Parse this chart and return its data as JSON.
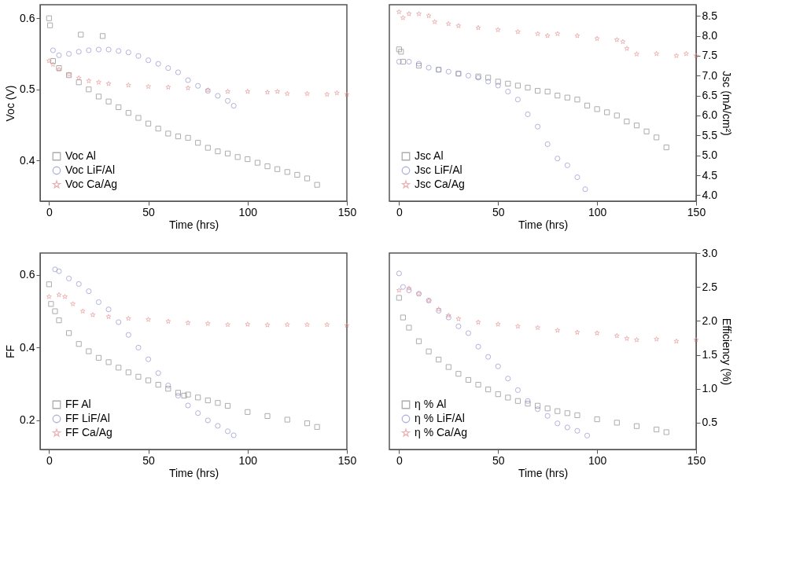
{
  "chart_data": [
    {
      "type": "scatter",
      "xlabel": "Time (hrs)",
      "ylabel": "Voc (V)",
      "xlim": [
        -4.5,
        150
      ],
      "xticks": [
        0,
        50,
        100,
        150
      ],
      "ylim": [
        0.343,
        0.619
      ],
      "yticks": [
        0.4,
        0.5,
        0.6
      ],
      "grid": false,
      "legend": "bottom left",
      "series": [
        {
          "name": "Voc Al",
          "color": "#808080",
          "marker": "square",
          "x": [
            0,
            0.5,
            2,
            5,
            10,
            15,
            16,
            20,
            25,
            27,
            30,
            35,
            40,
            45,
            50,
            55,
            60,
            65,
            70,
            75,
            80,
            85,
            90,
            95,
            100,
            105,
            110,
            115,
            120,
            125,
            130,
            135
          ],
          "values": [
            0.6,
            0.59,
            0.54,
            0.53,
            0.52,
            0.51,
            0.577,
            0.5,
            0.49,
            0.575,
            0.483,
            0.475,
            0.467,
            0.46,
            0.452,
            0.445,
            0.438,
            0.434,
            0.432,
            0.425,
            0.418,
            0.413,
            0.41,
            0.405,
            0.402,
            0.397,
            0.392,
            0.388,
            0.384,
            0.38,
            0.375,
            0.366
          ]
        },
        {
          "name": "Voc LiF/Al",
          "color": "#8888c8",
          "marker": "circle",
          "x": [
            2,
            5,
            10,
            15,
            20,
            25,
            30,
            35,
            40,
            45,
            50,
            55,
            60,
            65,
            70,
            75,
            80,
            85,
            90,
            93
          ],
          "values": [
            0.555,
            0.548,
            0.55,
            0.553,
            0.555,
            0.556,
            0.556,
            0.554,
            0.552,
            0.547,
            0.541,
            0.536,
            0.53,
            0.524,
            0.513,
            0.505,
            0.498,
            0.491,
            0.484,
            0.477
          ]
        },
        {
          "name": "Voc Ca/Ag",
          "color": "#e08c8c",
          "marker": "star",
          "x": [
            0,
            2,
            5,
            10,
            15,
            20,
            25,
            30,
            40,
            50,
            60,
            70,
            80,
            90,
            100,
            110,
            115,
            120,
            130,
            140,
            145,
            150
          ],
          "values": [
            0.54,
            0.535,
            0.528,
            0.521,
            0.516,
            0.512,
            0.51,
            0.508,
            0.506,
            0.504,
            0.503,
            0.502,
            0.499,
            0.497,
            0.497,
            0.496,
            0.497,
            0.494,
            0.494,
            0.493,
            0.495,
            0.493
          ]
        }
      ]
    },
    {
      "type": "scatter",
      "xlabel": "Time (hrs)",
      "y2label": "Jsc (mA/cm²)",
      "xlim": [
        -4.9,
        150
      ],
      "xticks": [
        0,
        50,
        100,
        150
      ],
      "y2lim": [
        3.85,
        8.78
      ],
      "y2ticks": [
        {
          "value": 4,
          "label": "4.0"
        },
        4.5,
        {
          "value": 5,
          "label": "5.0"
        },
        5.5,
        {
          "value": 6,
          "label": "6.0"
        },
        6.5,
        {
          "value": 7,
          "label": "7.0"
        },
        7.5,
        {
          "value": 8,
          "label": "8.0"
        },
        8.5
      ],
      "grid": false,
      "legend": "bottom left",
      "series": [
        {
          "name": "Jsc Al",
          "color": "#808080",
          "marker": "square",
          "axis": "y2",
          "x": [
            0,
            1,
            2,
            10,
            20,
            30,
            40,
            45,
            50,
            55,
            60,
            65,
            70,
            75,
            80,
            85,
            90,
            95,
            100,
            105,
            110,
            115,
            120,
            125,
            130,
            135
          ],
          "values": [
            7.66,
            7.6,
            7.35,
            7.25,
            7.15,
            7.05,
            6.98,
            6.95,
            6.85,
            6.8,
            6.75,
            6.7,
            6.62,
            6.6,
            6.5,
            6.45,
            6.4,
            6.25,
            6.16,
            6.08,
            6.0,
            5.85,
            5.75,
            5.6,
            5.45,
            5.2
          ]
        },
        {
          "name": "Jsc LiF/Al",
          "color": "#8888c8",
          "marker": "circle",
          "axis": "y2",
          "x": [
            0,
            5,
            10,
            15,
            20,
            25,
            30,
            35,
            40,
            45,
            50,
            55,
            60,
            65,
            70,
            75,
            80,
            85,
            90,
            94
          ],
          "values": [
            7.35,
            7.35,
            7.3,
            7.2,
            7.15,
            7.1,
            7.05,
            7.0,
            6.95,
            6.85,
            6.75,
            6.6,
            6.4,
            6.03,
            5.72,
            5.28,
            4.92,
            4.75,
            4.45,
            4.15
          ]
        },
        {
          "name": "Jsc Ca/Ag",
          "color": "#e08c8c",
          "marker": "star",
          "axis": "y2",
          "x": [
            0,
            2,
            5,
            10,
            15,
            18,
            25,
            30,
            40,
            50,
            60,
            70,
            75,
            80,
            90,
            100,
            110,
            113,
            115,
            120,
            130,
            140,
            145,
            150
          ],
          "values": [
            8.6,
            8.45,
            8.55,
            8.55,
            8.5,
            8.35,
            8.3,
            8.25,
            8.2,
            8.15,
            8.1,
            8.05,
            8.0,
            8.05,
            8.0,
            7.93,
            7.9,
            7.85,
            7.68,
            7.54,
            7.55,
            7.5,
            7.55,
            7.5
          ]
        }
      ]
    },
    {
      "type": "scatter",
      "xlabel": "Time (hrs)",
      "ylabel": "FF",
      "xlim": [
        -4.5,
        150
      ],
      "xticks": [
        0,
        50,
        100,
        150
      ],
      "ylim": [
        0.12,
        0.66
      ],
      "yticks": [
        0.2,
        0.4,
        0.6
      ],
      "grid": false,
      "legend": "bottom left",
      "series": [
        {
          "name": "FF Al",
          "color": "#808080",
          "marker": "square",
          "x": [
            0,
            1,
            3,
            5,
            10,
            15,
            20,
            25,
            30,
            35,
            40,
            45,
            50,
            55,
            60,
            65,
            68,
            70,
            75,
            80,
            85,
            90,
            100,
            110,
            120,
            130,
            135
          ],
          "values": [
            0.574,
            0.52,
            0.5,
            0.475,
            0.44,
            0.41,
            0.39,
            0.372,
            0.36,
            0.345,
            0.332,
            0.32,
            0.31,
            0.298,
            0.287,
            0.276,
            0.268,
            0.271,
            0.263,
            0.255,
            0.248,
            0.24,
            0.223,
            0.212,
            0.202,
            0.192,
            0.182
          ]
        },
        {
          "name": "FF LiF/Al",
          "color": "#8888c8",
          "marker": "circle",
          "x": [
            3,
            5,
            10,
            15,
            20,
            25,
            30,
            35,
            40,
            45,
            50,
            55,
            60,
            65,
            70,
            75,
            80,
            85,
            90,
            93
          ],
          "values": [
            0.615,
            0.61,
            0.59,
            0.575,
            0.555,
            0.525,
            0.505,
            0.47,
            0.435,
            0.4,
            0.368,
            0.33,
            0.296,
            0.268,
            0.241,
            0.22,
            0.2,
            0.185,
            0.17,
            0.159
          ]
        },
        {
          "name": "FF Ca/Ag",
          "color": "#e08c8c",
          "marker": "star",
          "x": [
            0,
            5,
            8,
            12,
            17,
            22,
            30,
            40,
            50,
            60,
            70,
            80,
            90,
            100,
            110,
            120,
            130,
            140,
            150
          ],
          "values": [
            0.54,
            0.545,
            0.54,
            0.52,
            0.5,
            0.49,
            0.485,
            0.48,
            0.477,
            0.472,
            0.468,
            0.466,
            0.463,
            0.464,
            0.462,
            0.463,
            0.463,
            0.463,
            0.461
          ]
        }
      ]
    },
    {
      "type": "scatter",
      "xlabel": "Time (hrs)",
      "y2label": "Efficiency (%)",
      "xlim": [
        -4.9,
        150
      ],
      "xticks": [
        0,
        50,
        100,
        150
      ],
      "y2lim": [
        0.105,
        3.0
      ],
      "y2ticks": [
        0.5,
        {
          "value": 1,
          "label": "1.0"
        },
        1.5,
        {
          "value": 2,
          "label": "2.0"
        },
        2.5,
        {
          "value": 3,
          "label": "3.0"
        }
      ],
      "grid": false,
      "legend": "bottom left",
      "series": [
        {
          "name": "η % Al",
          "color": "#808080",
          "marker": "square",
          "axis": "y2",
          "x": [
            0,
            2,
            5,
            10,
            15,
            20,
            25,
            30,
            35,
            40,
            45,
            50,
            55,
            60,
            65,
            70,
            75,
            80,
            85,
            90,
            100,
            110,
            120,
            130,
            135
          ],
          "values": [
            2.34,
            2.05,
            1.9,
            1.7,
            1.55,
            1.43,
            1.32,
            1.22,
            1.13,
            1.06,
            0.99,
            0.92,
            0.87,
            0.82,
            0.78,
            0.75,
            0.71,
            0.67,
            0.64,
            0.61,
            0.55,
            0.5,
            0.45,
            0.4,
            0.36
          ]
        },
        {
          "name": "η % LiF/Al",
          "color": "#8888c8",
          "marker": "circle",
          "axis": "y2",
          "x": [
            0,
            2,
            5,
            10,
            15,
            20,
            25,
            30,
            35,
            40,
            45,
            50,
            55,
            60,
            65,
            70,
            75,
            80,
            85,
            90,
            95
          ],
          "values": [
            2.7,
            2.5,
            2.45,
            2.4,
            2.3,
            2.15,
            2.05,
            1.92,
            1.82,
            1.62,
            1.47,
            1.33,
            1.15,
            0.98,
            0.82,
            0.7,
            0.6,
            0.49,
            0.43,
            0.38,
            0.31
          ]
        },
        {
          "name": "η % Ca/Ag",
          "color": "#e08c8c",
          "marker": "star",
          "axis": "y2",
          "x": [
            0,
            5,
            10,
            15,
            20,
            25,
            30,
            40,
            50,
            60,
            70,
            80,
            90,
            100,
            110,
            115,
            120,
            130,
            140,
            150
          ],
          "values": [
            2.45,
            2.48,
            2.4,
            2.3,
            2.17,
            2.08,
            2.03,
            1.98,
            1.95,
            1.92,
            1.9,
            1.86,
            1.83,
            1.82,
            1.78,
            1.74,
            1.72,
            1.73,
            1.7,
            1.72
          ]
        }
      ]
    }
  ]
}
